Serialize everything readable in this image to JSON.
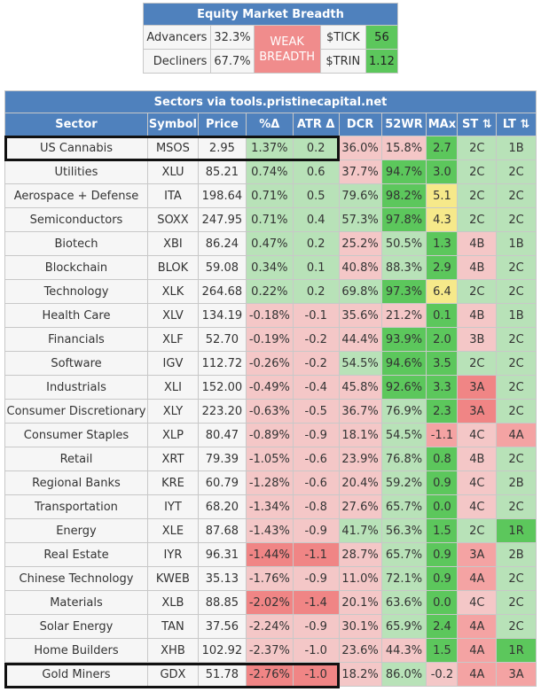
{
  "breadth": {
    "title": "Equity Market Breadth",
    "advancers_label": "Advancers",
    "advancers_value": "32.3%",
    "decliners_label": "Decliners",
    "decliners_value": "67.7%",
    "status_line1": "WEAK",
    "status_line2": "BREADTH",
    "tick_label": "$TICK",
    "tick_value": "56",
    "trin_label": "$TRIN",
    "trin_value": "1.12"
  },
  "sectors": {
    "caption": "Sectors via tools.pristinecapital.net",
    "headers": [
      "Sector",
      "Symbol",
      "Price",
      "%Δ",
      "ATR Δ",
      "DCR",
      "52WR",
      "MAx",
      "ST ⇅",
      "LT ⇅"
    ],
    "rows": [
      [
        "US Cannabis",
        "MSOS",
        "2.95",
        "1.37%",
        "0.2",
        "36.0%",
        "15.8%",
        "2.7",
        "2C",
        "1B"
      ],
      [
        "Utilities",
        "XLU",
        "85.21",
        "0.74%",
        "0.6",
        "37.7%",
        "94.7%",
        "3.0",
        "2C",
        "2C"
      ],
      [
        "Aerospace + Defense",
        "ITA",
        "198.64",
        "0.71%",
        "0.5",
        "79.6%",
        "98.2%",
        "5.1",
        "2C",
        "2C"
      ],
      [
        "Semiconductors",
        "SOXX",
        "247.95",
        "0.71%",
        "0.4",
        "57.3%",
        "97.8%",
        "4.3",
        "2C",
        "2C"
      ],
      [
        "Biotech",
        "XBI",
        "86.24",
        "0.47%",
        "0.2",
        "25.2%",
        "50.5%",
        "1.3",
        "4B",
        "1B"
      ],
      [
        "Blockchain",
        "BLOK",
        "59.08",
        "0.34%",
        "0.1",
        "40.8%",
        "88.3%",
        "2.9",
        "4B",
        "2C"
      ],
      [
        "Technology",
        "XLK",
        "264.68",
        "0.22%",
        "0.2",
        "69.8%",
        "97.3%",
        "6.4",
        "2C",
        "2C"
      ],
      [
        "Health Care",
        "XLV",
        "134.19",
        "-0.18%",
        "-0.1",
        "35.6%",
        "21.2%",
        "0.1",
        "4B",
        "1B"
      ],
      [
        "Financials",
        "XLF",
        "52.70",
        "-0.19%",
        "-0.2",
        "44.4%",
        "93.9%",
        "2.0",
        "3B",
        "2C"
      ],
      [
        "Software",
        "IGV",
        "112.72",
        "-0.26%",
        "-0.2",
        "54.5%",
        "94.6%",
        "3.5",
        "2C",
        "2C"
      ],
      [
        "Industrials",
        "XLI",
        "152.00",
        "-0.49%",
        "-0.4",
        "45.8%",
        "92.6%",
        "3.3",
        "3A",
        "2C"
      ],
      [
        "Consumer Discretionary",
        "XLY",
        "223.20",
        "-0.63%",
        "-0.5",
        "36.7%",
        "76.9%",
        "2.3",
        "3A",
        "2C"
      ],
      [
        "Consumer Staples",
        "XLP",
        "80.47",
        "-0.89%",
        "-0.9",
        "18.1%",
        "54.5%",
        "-1.1",
        "4C",
        "4A"
      ],
      [
        "Retail",
        "XRT",
        "79.39",
        "-1.05%",
        "-0.6",
        "23.9%",
        "76.8%",
        "0.8",
        "4B",
        "2C"
      ],
      [
        "Regional Banks",
        "KRE",
        "60.79",
        "-1.28%",
        "-0.6",
        "20.4%",
        "59.2%",
        "0.9",
        "4C",
        "2B"
      ],
      [
        "Transportation",
        "IYT",
        "68.20",
        "-1.34%",
        "-0.8",
        "27.6%",
        "65.7%",
        "0.0",
        "4C",
        "2C"
      ],
      [
        "Energy",
        "XLE",
        "87.68",
        "-1.43%",
        "-0.9",
        "41.7%",
        "56.3%",
        "1.5",
        "2C",
        "1R"
      ],
      [
        "Real Estate",
        "IYR",
        "96.31",
        "-1.44%",
        "-1.1",
        "28.7%",
        "65.7%",
        "0.9",
        "3A",
        "2B"
      ],
      [
        "Chinese Technology",
        "KWEB",
        "35.13",
        "-1.76%",
        "-0.9",
        "11.0%",
        "72.1%",
        "0.9",
        "4A",
        "2C"
      ],
      [
        "Materials",
        "XLB",
        "88.85",
        "-2.02%",
        "-1.4",
        "20.1%",
        "63.6%",
        "0.0",
        "4C",
        "2C"
      ],
      [
        "Solar Energy",
        "TAN",
        "37.56",
        "-2.24%",
        "-0.9",
        "30.1%",
        "65.9%",
        "2.4",
        "4A",
        "2C"
      ],
      [
        "Home Builders",
        "XHB",
        "102.92",
        "-2.37%",
        "-1.0",
        "23.6%",
        "44.3%",
        "1.5",
        "4A",
        "1R"
      ],
      [
        "Gold Miners",
        "GDX",
        "51.78",
        "-2.76%",
        "-1.0",
        "18.2%",
        "86.0%",
        "-0.2",
        "4A",
        "3A"
      ]
    ],
    "cell_classes": [
      [
        "bg-w",
        "bg-w",
        "bg-w",
        "c1",
        "c1",
        "r1",
        "r1",
        "c3",
        "c1",
        "c1"
      ],
      [
        "bg-w",
        "bg-w",
        "bg-w",
        "c1",
        "c1",
        "r1",
        "c3",
        "c3",
        "c1",
        "c1"
      ],
      [
        "bg-w",
        "bg-w",
        "bg-w",
        "c1",
        "c1",
        "c1",
        "c3",
        "y1",
        "c1",
        "c1"
      ],
      [
        "bg-w",
        "bg-w",
        "bg-w",
        "c1",
        "c1",
        "c1",
        "c3",
        "y1",
        "c1",
        "c1"
      ],
      [
        "bg-w",
        "bg-w",
        "bg-w",
        "c1",
        "c1",
        "r1",
        "c1",
        "c3",
        "r1",
        "c1"
      ],
      [
        "bg-w",
        "bg-w",
        "bg-w",
        "c1",
        "c1",
        "r1",
        "c1",
        "c3",
        "r1",
        "c1"
      ],
      [
        "bg-w",
        "bg-w",
        "bg-w",
        "c1",
        "c1",
        "c1",
        "c3",
        "y1",
        "c1",
        "c1"
      ],
      [
        "bg-w",
        "bg-w",
        "bg-w",
        "r1",
        "r1",
        "r1",
        "r1",
        "c3",
        "r1",
        "c1"
      ],
      [
        "bg-w",
        "bg-w",
        "bg-w",
        "r1",
        "r1",
        "r1",
        "c3",
        "c3",
        "r1",
        "c1"
      ],
      [
        "bg-w",
        "bg-w",
        "bg-w",
        "r1",
        "r1",
        "c1",
        "c3",
        "c3",
        "c1",
        "c1"
      ],
      [
        "bg-w",
        "bg-w",
        "bg-w",
        "r1",
        "r1",
        "r1",
        "c3",
        "c3",
        "r3",
        "c1"
      ],
      [
        "bg-w",
        "bg-w",
        "bg-w",
        "r1",
        "r1",
        "r1",
        "c1",
        "c3",
        "r3",
        "c1"
      ],
      [
        "bg-w",
        "bg-w",
        "bg-w",
        "r1",
        "r1",
        "r1",
        "c1",
        "r2",
        "r1",
        "r2"
      ],
      [
        "bg-w",
        "bg-w",
        "bg-w",
        "r1",
        "r1",
        "r1",
        "c1",
        "c3",
        "r1",
        "c1"
      ],
      [
        "bg-w",
        "bg-w",
        "bg-w",
        "r1",
        "r1",
        "r1",
        "c1",
        "c3",
        "r1",
        "c1"
      ],
      [
        "bg-w",
        "bg-w",
        "bg-w",
        "r1",
        "r1",
        "r1",
        "c1",
        "c3",
        "r1",
        "c1"
      ],
      [
        "bg-w",
        "bg-w",
        "bg-w",
        "r1",
        "r1",
        "c1",
        "c1",
        "c3",
        "c1",
        "c3"
      ],
      [
        "bg-w",
        "bg-w",
        "bg-w",
        "r3",
        "r3",
        "r1",
        "c1",
        "c3",
        "r2",
        "c1"
      ],
      [
        "bg-w",
        "bg-w",
        "bg-w",
        "r1",
        "r1",
        "r1",
        "c1",
        "c3",
        "r2",
        "c1"
      ],
      [
        "bg-w",
        "bg-w",
        "bg-w",
        "r3",
        "r3",
        "r1",
        "c1",
        "c3",
        "r1",
        "c1"
      ],
      [
        "bg-w",
        "bg-w",
        "bg-w",
        "r1",
        "r1",
        "r1",
        "c1",
        "c3",
        "r2",
        "c1"
      ],
      [
        "bg-w",
        "bg-w",
        "bg-w",
        "r1",
        "r1",
        "r1",
        "r1",
        "c3",
        "r2",
        "c3"
      ],
      [
        "bg-w",
        "bg-w",
        "bg-w",
        "r3",
        "r3",
        "r1",
        "c1",
        "r1",
        "r2",
        "r2"
      ]
    ]
  }
}
